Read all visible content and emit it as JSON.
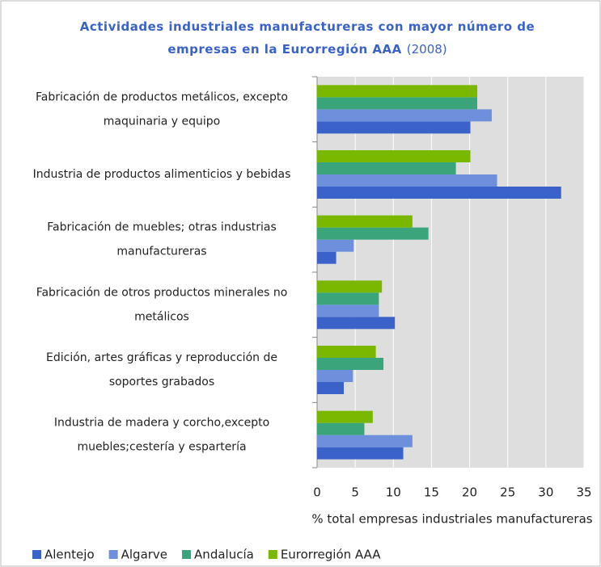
{
  "chart_data": {
    "type": "bar",
    "orientation": "horizontal",
    "title": "Actividades industriales manufactureras con mayor número de empresas en la Eurorregión AAA",
    "subtitle": "(2008)",
    "x_label": "% total empresas industriales manufactureras",
    "categories": [
      "Fabricación de productos metálicos, excepto maquinaria y equipo",
      "Industria de productos alimenticios y bebidas",
      "Fabricación de muebles; otras industrias manufactureras",
      "Fabricación de otros productos minerales no metálicos",
      "Edición, artes gráficas y reproducción de soportes grabados",
      "Industria de madera y corcho,excepto muebles;cestería y espartería"
    ],
    "series": [
      {
        "name": "Alentejo",
        "color": "#3a62c8",
        "values": [
          20.1,
          32.0,
          2.5,
          10.2,
          3.5,
          11.3
        ]
      },
      {
        "name": "Algarve",
        "color": "#6d8fdc",
        "values": [
          22.9,
          23.6,
          4.8,
          8.1,
          4.7,
          12.5
        ]
      },
      {
        "name": "Andalucía",
        "color": "#3aa57a",
        "values": [
          21.0,
          18.2,
          14.6,
          8.1,
          8.7,
          6.2
        ]
      },
      {
        "name": "Eurorregión AAA",
        "color": "#7ab800",
        "values": [
          21.0,
          20.1,
          12.5,
          8.5,
          7.7,
          7.3
        ]
      }
    ],
    "xlim": [
      0,
      35
    ],
    "xticks": [
      0,
      5,
      10,
      15,
      20,
      25,
      30,
      35
    ],
    "grid": true,
    "legend": "bottom"
  }
}
